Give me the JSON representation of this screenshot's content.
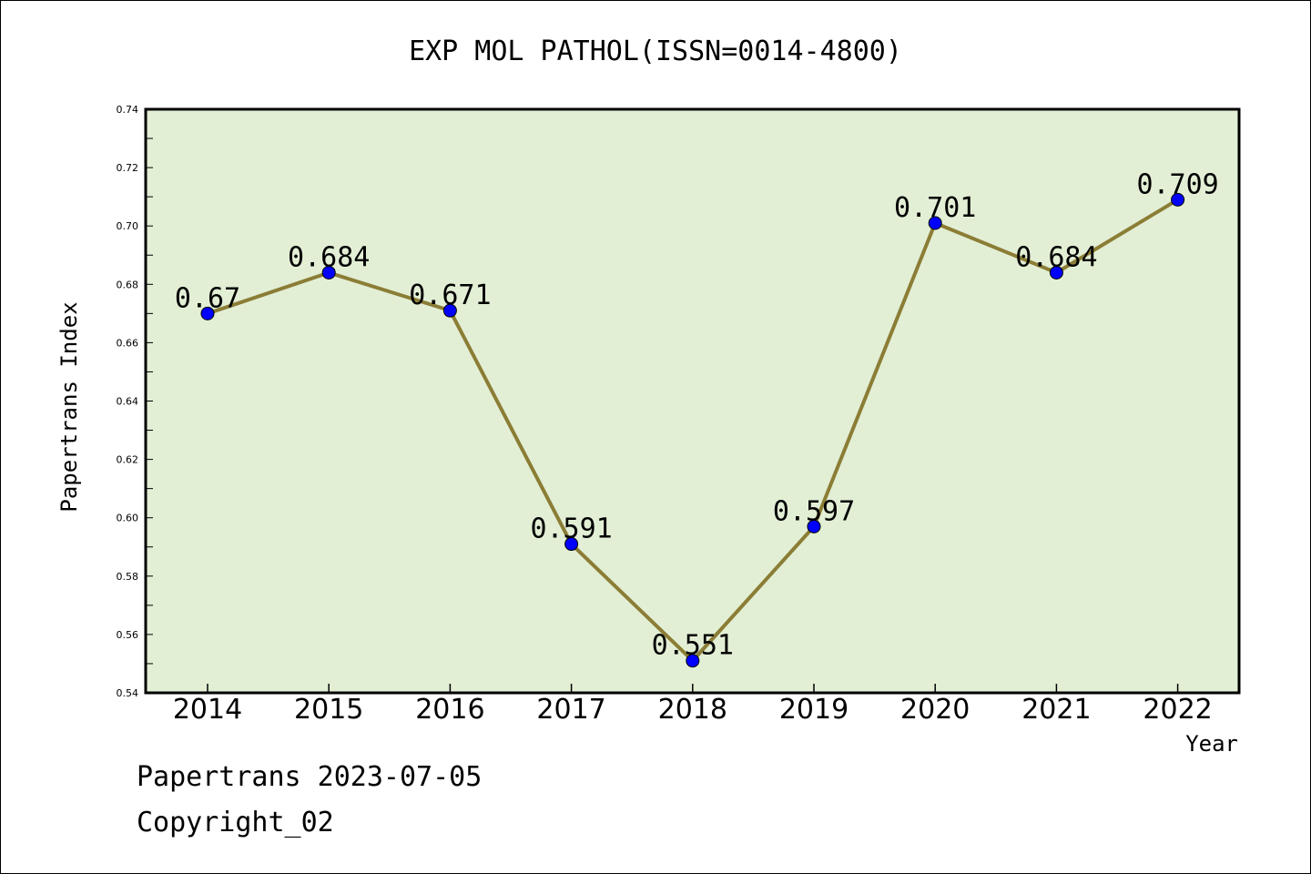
{
  "footer": {
    "line1": "Papertrans 2023-07-05",
    "line2": "Copyright_02"
  },
  "chart_data": {
    "type": "line",
    "title": "EXP MOL PATHOL(ISSN=0014-4800)",
    "xlabel": "Year",
    "ylabel": "Papertrans Index",
    "categories": [
      "2014",
      "2015",
      "2016",
      "2017",
      "2018",
      "2019",
      "2020",
      "2021",
      "2022"
    ],
    "values": [
      0.67,
      0.684,
      0.671,
      0.591,
      0.551,
      0.597,
      0.701,
      0.684,
      0.709
    ],
    "data_labels": [
      "0.67",
      "0.684",
      "0.671",
      "0.591",
      "0.551",
      "0.597",
      "0.701",
      "0.684",
      "0.709"
    ],
    "ylim": [
      0.54,
      0.74
    ],
    "yticks": [
      0.54,
      0.56,
      0.58,
      0.6,
      0.62,
      0.64,
      0.66,
      0.68,
      0.7,
      0.72,
      0.74
    ],
    "ytick_labels": [
      "0.54",
      "0.56",
      "0.58",
      "0.60",
      "0.62",
      "0.64",
      "0.66",
      "0.68",
      "0.70",
      "0.72",
      "0.74"
    ],
    "grid": false,
    "colors": {
      "plot_background": "#e2efd5",
      "line": "#8b7d35",
      "marker": "#0000ff"
    }
  }
}
